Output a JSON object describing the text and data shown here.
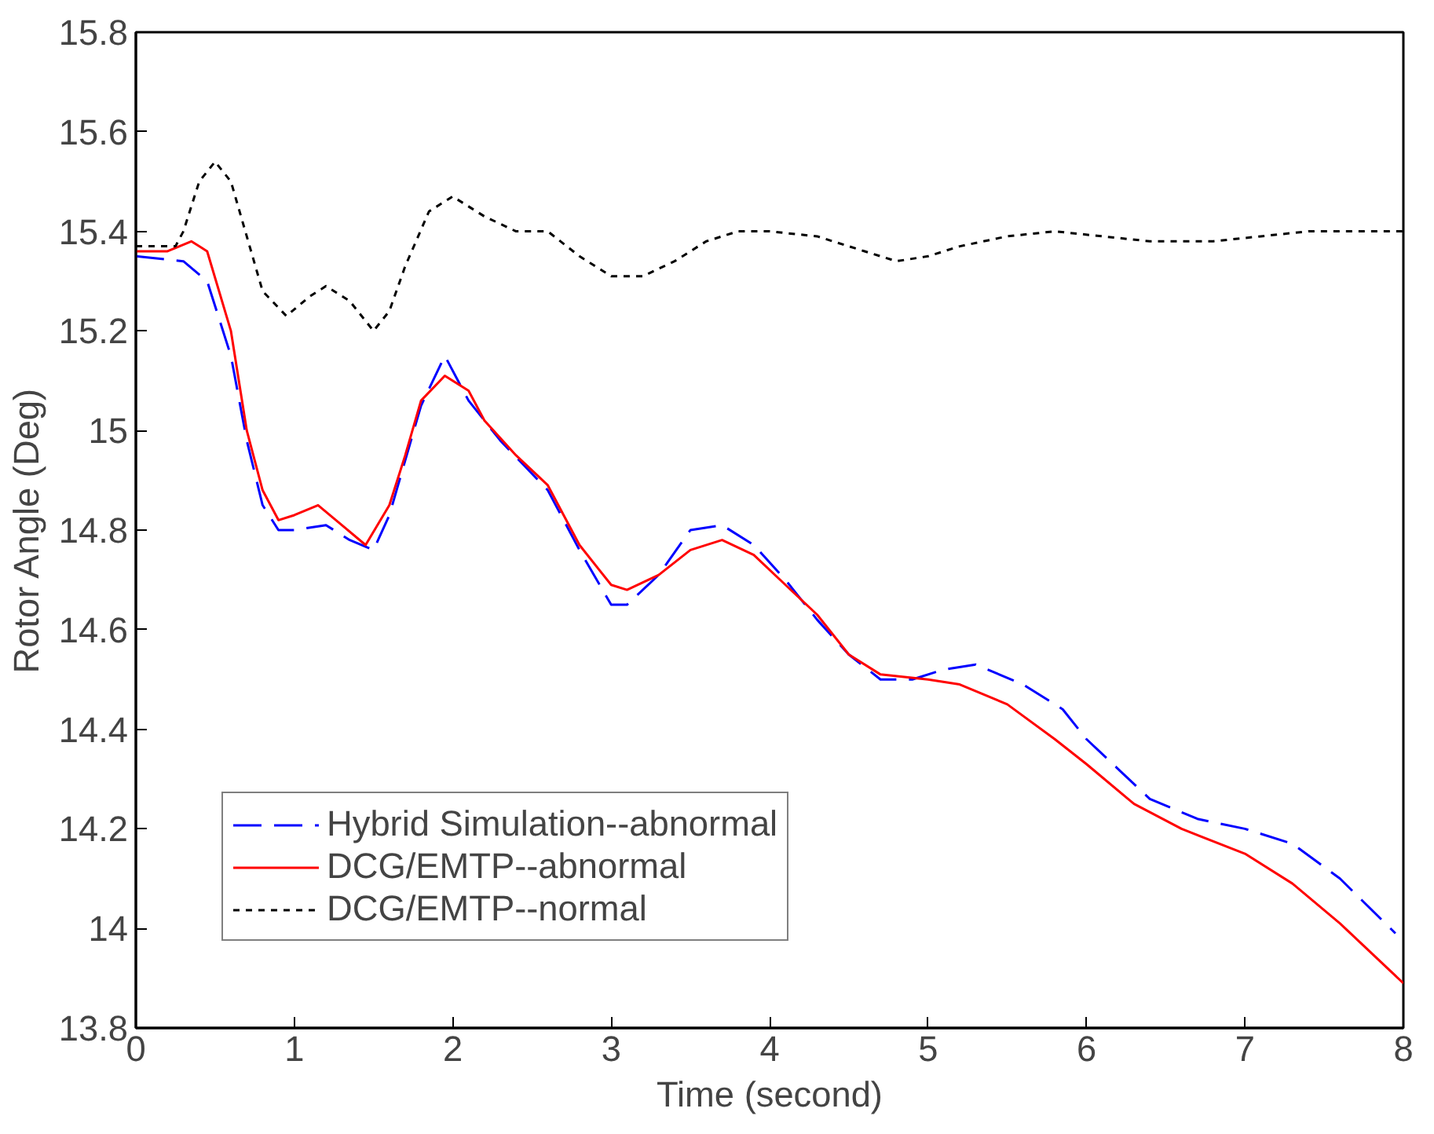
{
  "chart_data": {
    "type": "line",
    "xlabel": "Time (second)",
    "ylabel": "Rotor Angle (Deg)",
    "xlim": [
      0,
      8
    ],
    "ylim": [
      13.8,
      15.8
    ],
    "xticks": [
      0,
      1,
      2,
      3,
      4,
      5,
      6,
      7,
      8
    ],
    "yticks": [
      13.8,
      14,
      14.2,
      14.4,
      14.6,
      14.8,
      15,
      15.2,
      15.4,
      15.6,
      15.8
    ],
    "grid": false,
    "legend": "bottom left",
    "marker": "none",
    "series": [
      {
        "name": "Hybrid Simulation--abnormal",
        "color": "#0000ff",
        "line_style": "dashed",
        "x": [
          0,
          0.3,
          0.45,
          0.6,
          0.7,
          0.8,
          0.9,
          1.0,
          1.2,
          1.35,
          1.5,
          1.6,
          1.8,
          1.95,
          2.1,
          2.3,
          2.6,
          2.8,
          3.0,
          3.1,
          3.3,
          3.5,
          3.7,
          3.9,
          4.1,
          4.3,
          4.5,
          4.7,
          4.9,
          5.1,
          5.3,
          5.6,
          5.85,
          6.0,
          6.2,
          6.4,
          6.7,
          7.0,
          7.3,
          7.6,
          7.95
        ],
        "values": [
          15.35,
          15.34,
          15.3,
          15.15,
          14.98,
          14.85,
          14.8,
          14.8,
          14.81,
          14.78,
          14.76,
          14.83,
          15.05,
          15.15,
          15.06,
          14.98,
          14.88,
          14.76,
          14.65,
          14.65,
          14.71,
          14.8,
          14.81,
          14.77,
          14.7,
          14.62,
          14.55,
          14.5,
          14.5,
          14.52,
          14.53,
          14.49,
          14.44,
          14.38,
          14.32,
          14.26,
          14.22,
          14.2,
          14.17,
          14.1,
          13.99
        ]
      },
      {
        "name": "DCG/EMTP--abnormal",
        "color": "#ff0000",
        "line_style": "solid",
        "x": [
          0,
          0.2,
          0.35,
          0.45,
          0.6,
          0.7,
          0.8,
          0.9,
          1.0,
          1.15,
          1.3,
          1.45,
          1.6,
          1.7,
          1.8,
          1.95,
          2.1,
          2.2,
          2.4,
          2.6,
          2.8,
          3.0,
          3.1,
          3.3,
          3.5,
          3.7,
          3.9,
          4.1,
          4.3,
          4.5,
          4.7,
          5.0,
          5.2,
          5.5,
          5.8,
          6.0,
          6.3,
          6.6,
          7.0,
          7.3,
          7.6,
          8.0
        ],
        "values": [
          15.36,
          15.36,
          15.38,
          15.36,
          15.2,
          15.0,
          14.88,
          14.82,
          14.83,
          14.85,
          14.81,
          14.77,
          14.85,
          14.95,
          15.06,
          15.11,
          15.08,
          15.02,
          14.95,
          14.89,
          14.77,
          14.69,
          14.68,
          14.71,
          14.76,
          14.78,
          14.75,
          14.69,
          14.63,
          14.55,
          14.51,
          14.5,
          14.49,
          14.45,
          14.38,
          14.33,
          14.25,
          14.2,
          14.15,
          14.09,
          14.01,
          13.89
        ]
      },
      {
        "name": "DCG/EMTP--normal",
        "color": "#000000",
        "line_style": "dotted",
        "x": [
          0,
          0.25,
          0.3,
          0.4,
          0.5,
          0.6,
          0.7,
          0.8,
          0.95,
          1.1,
          1.2,
          1.35,
          1.5,
          1.6,
          1.7,
          1.85,
          2.0,
          2.2,
          2.4,
          2.6,
          2.8,
          3.0,
          3.2,
          3.4,
          3.6,
          3.8,
          4.0,
          4.3,
          4.6,
          4.8,
          5.0,
          5.2,
          5.5,
          5.8,
          6.1,
          6.4,
          6.8,
          7.1,
          7.4,
          8.0
        ],
        "values": [
          15.37,
          15.37,
          15.4,
          15.5,
          15.54,
          15.5,
          15.39,
          15.28,
          15.23,
          15.27,
          15.29,
          15.26,
          15.2,
          15.24,
          15.33,
          15.44,
          15.47,
          15.43,
          15.4,
          15.4,
          15.35,
          15.31,
          15.31,
          15.34,
          15.38,
          15.4,
          15.4,
          15.39,
          15.36,
          15.34,
          15.35,
          15.37,
          15.39,
          15.4,
          15.39,
          15.38,
          15.38,
          15.39,
          15.4,
          15.4
        ]
      }
    ]
  }
}
